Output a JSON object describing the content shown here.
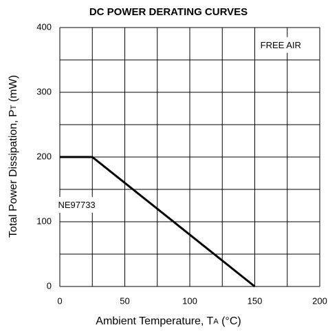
{
  "chart_data": {
    "type": "line",
    "title": "DC POWER DERATING CURVES",
    "xlabel": [
      "Ambient Temperature, T",
      "A",
      " (°C)"
    ],
    "ylabel": [
      "Total Power Dissipation, P",
      "T",
      " (mW)"
    ],
    "x": [
      0,
      25,
      150
    ],
    "values": [
      200,
      200,
      0
    ],
    "color": "#000000",
    "xlim": [
      0,
      200
    ],
    "xticks": [
      0,
      50,
      100,
      150,
      200
    ],
    "ylim": [
      0,
      400
    ],
    "yticks": [
      0,
      100,
      200,
      300,
      400
    ],
    "xgrid": [
      0,
      25,
      50,
      75,
      100,
      125,
      150,
      175,
      200
    ],
    "ygrid": [
      0,
      50,
      100,
      150,
      200,
      250,
      300,
      350,
      400
    ],
    "grid": true,
    "annotations": [
      {
        "text": "FREE AIR",
        "x": 170,
        "y": 372
      },
      {
        "text": "NE97733",
        "x": 13,
        "y": 125
      }
    ]
  }
}
